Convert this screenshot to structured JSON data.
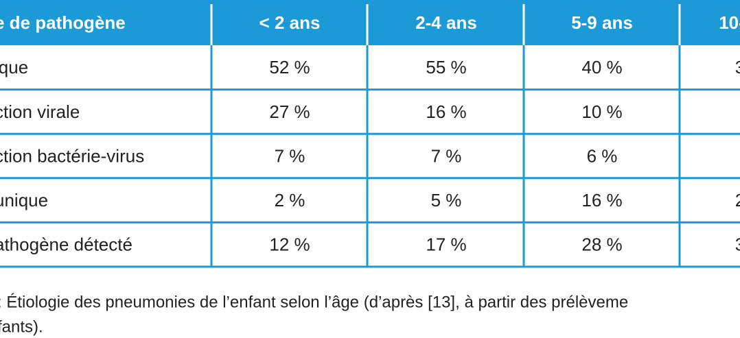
{
  "table": {
    "header": [
      "e de pathogène",
      "< 2 ans",
      "2-4 ans",
      "5-9 ans",
      "10-"
    ],
    "rows": [
      [
        "ique",
        "52 %",
        "55 %",
        "40 %",
        "3"
      ],
      [
        "ction virale",
        "27 %",
        "16 %",
        "10 %"
      ],
      [
        "ction bactérie-virus",
        "7 %",
        "7 %",
        "6 %"
      ],
      [
        " unique",
        "2 %",
        "5 %",
        "16 %",
        "2"
      ],
      [
        "athogène détecté",
        "12 %",
        "17 %",
        "28 %",
        "3"
      ]
    ]
  },
  "caption": [
    ": Étiologie des pneumonies de l’enfant selon l’âge (d’après [13], à partir des prélèveme",
    "fants)."
  ]
}
